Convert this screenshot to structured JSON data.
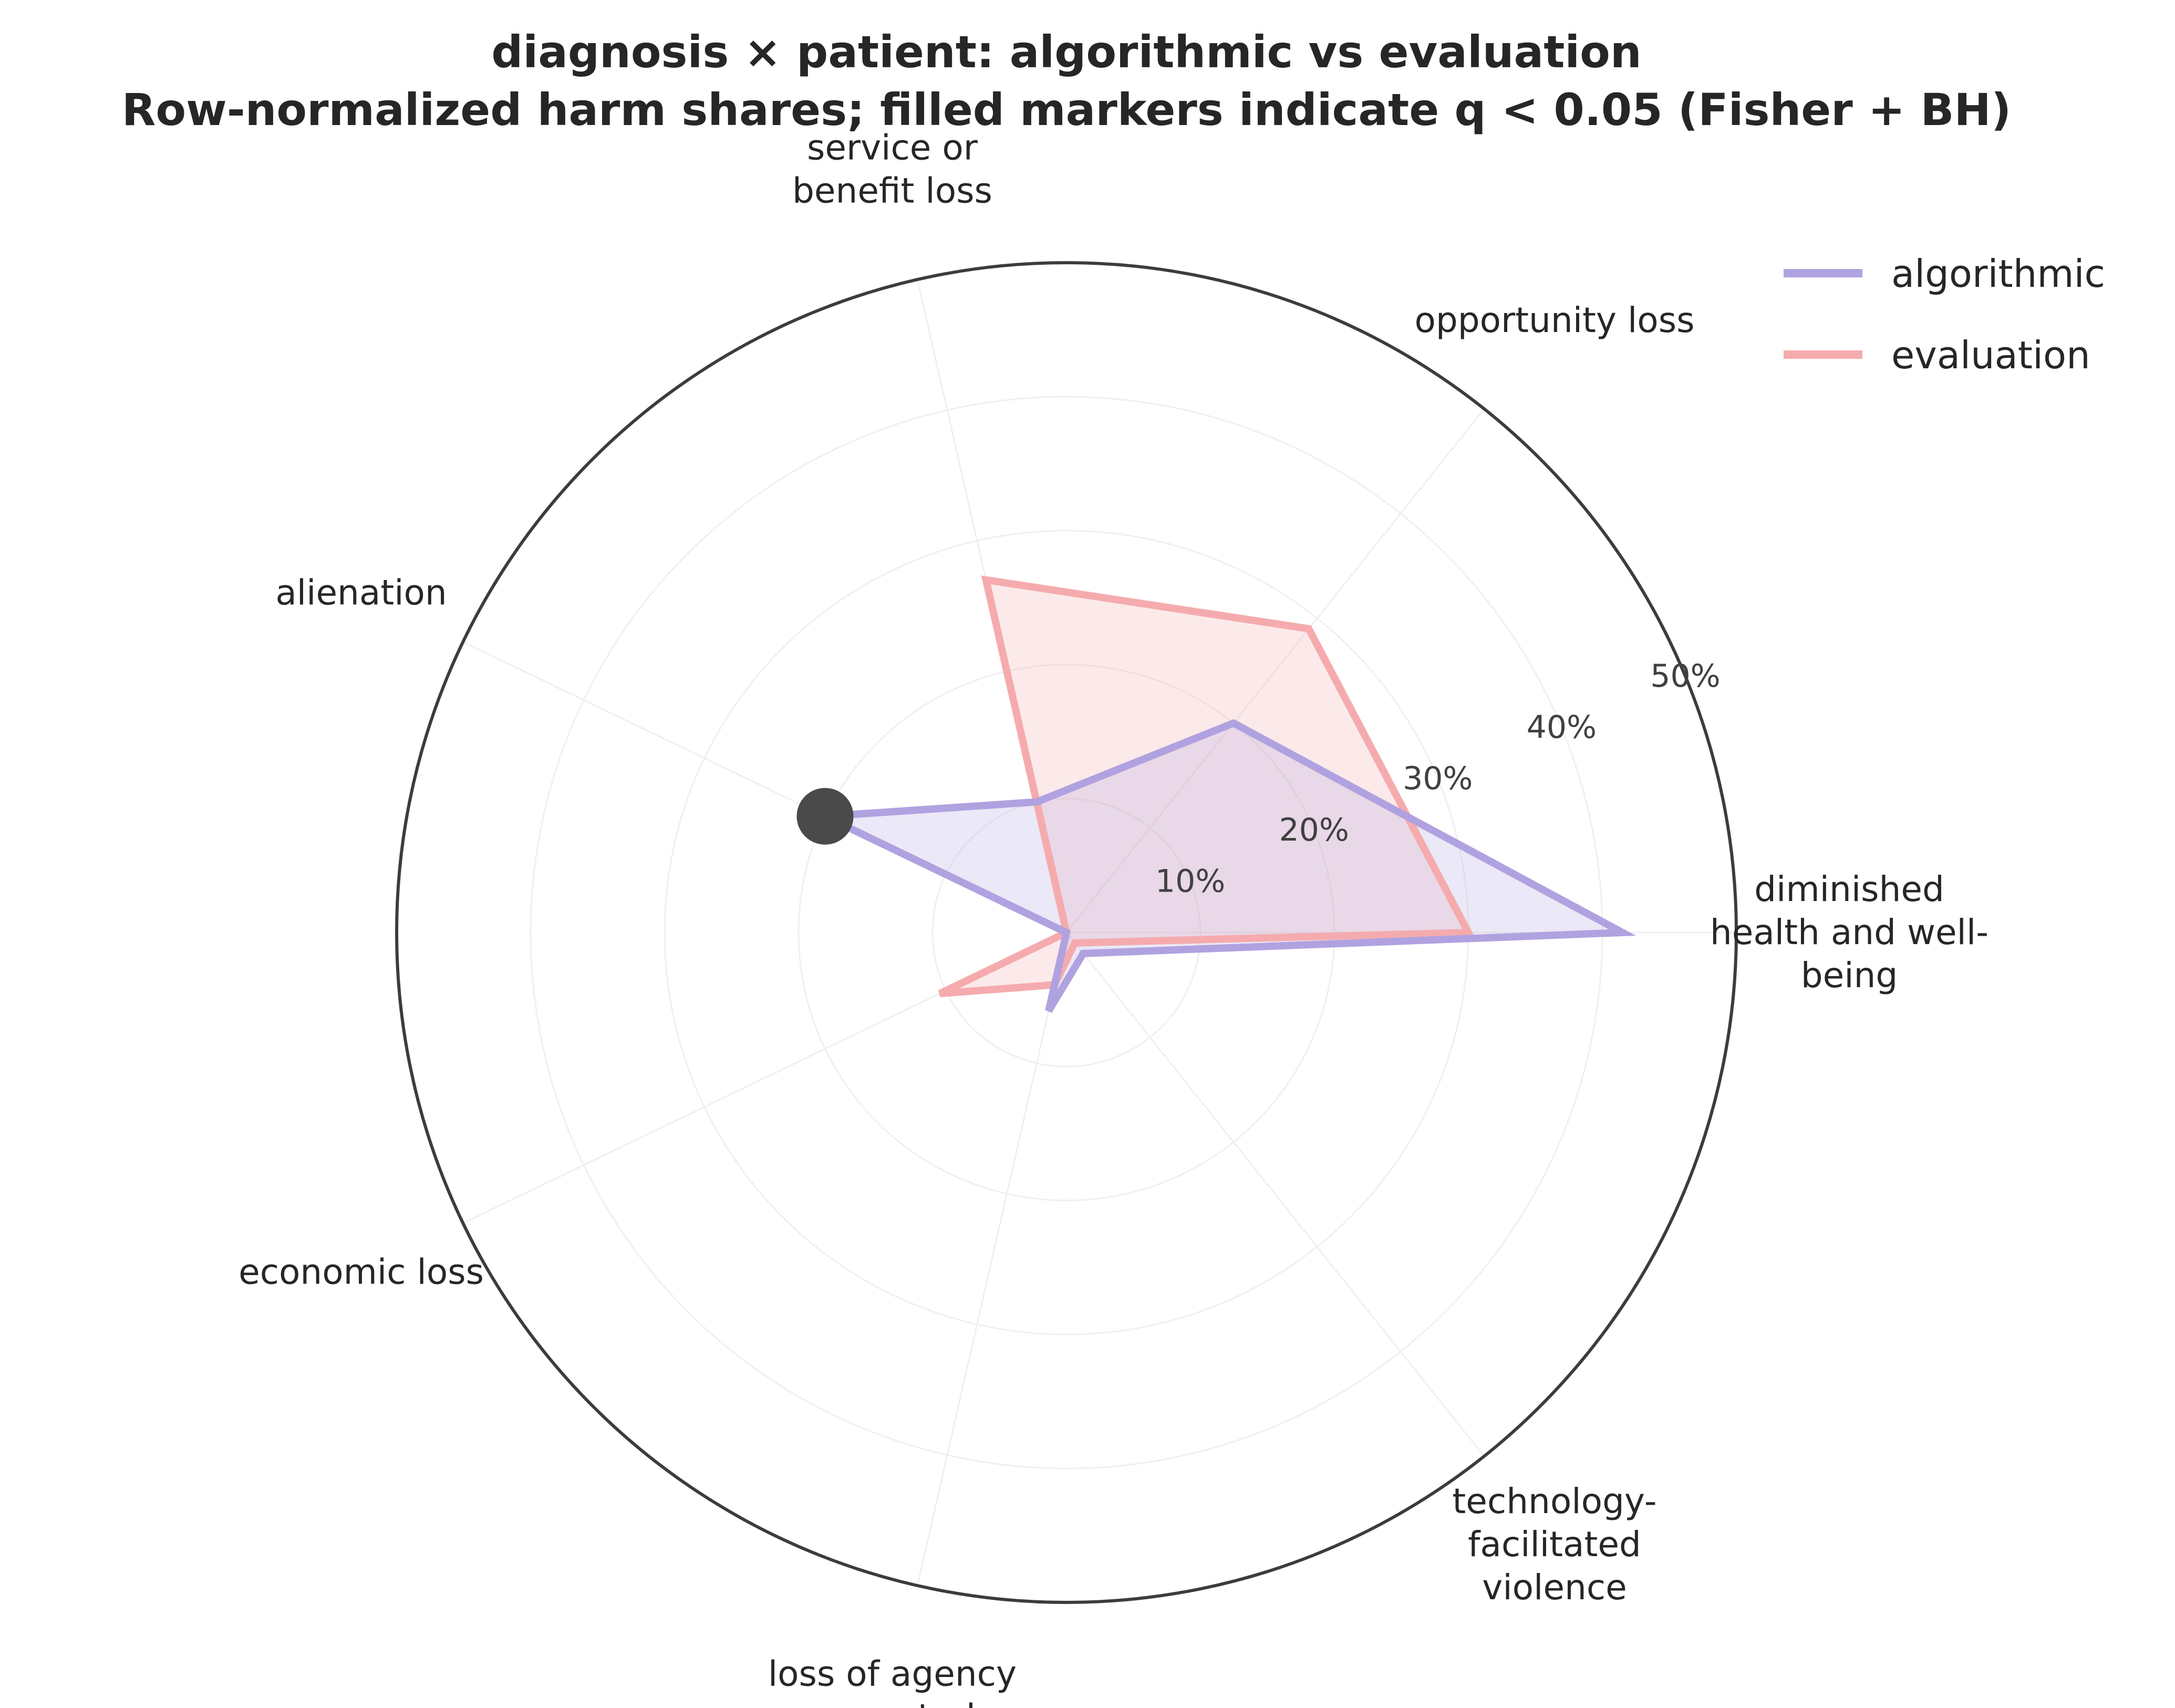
{
  "chart_data": {
    "type": "radar",
    "title_lines": [
      "diagnosis × patient: algorithmic vs evaluation",
      "Row-normalized harm shares; filled markers indicate q < 0.05 (Fisher + BH)"
    ],
    "categories": [
      "diminished health and well-being",
      "opportunity loss",
      "service or benefit loss",
      "alienation",
      "economic loss",
      "loss of agency or control",
      "technology-facilitated violence"
    ],
    "category_label_lines": [
      [
        "diminished",
        "health and well-",
        "being"
      ],
      [
        "opportunity loss"
      ],
      [
        "service or",
        "benefit loss"
      ],
      [
        "alienation"
      ],
      [
        "economic loss"
      ],
      [
        "loss of agency",
        "or control"
      ],
      [
        "technology-",
        "facilitated",
        "violence"
      ]
    ],
    "rlim": [
      0,
      50
    ],
    "r_ticks": [
      10,
      20,
      30,
      40,
      50
    ],
    "r_tick_labels": [
      "10%",
      "20%",
      "30%",
      "40%",
      "50%"
    ],
    "series": [
      {
        "name": "algorithmic",
        "color": "#b0a2e0",
        "values": [
          41.5,
          20.0,
          10.0,
          20.0,
          0.0,
          6.0,
          2.0
        ]
      },
      {
        "name": "evaluation",
        "color": "#f5abad",
        "values": [
          30.0,
          29.0,
          27.0,
          0.0,
          10.5,
          4.0,
          1.0
        ]
      }
    ],
    "significant_markers": [
      {
        "series": "algorithmic",
        "category": "alienation",
        "value": 20.0,
        "color": "#4a4a4a"
      }
    ],
    "legend_position": "top-right",
    "grid": true
  }
}
